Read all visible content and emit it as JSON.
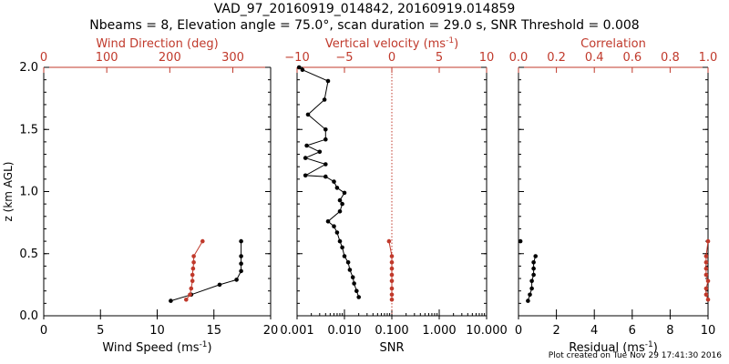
{
  "title_line1": "VAD_97_20160919_014842, 20160919.014859",
  "title_line2": "Nbeams = 8, Elevation angle = 75.0°, scan duration = 29.0 s, SNR Threshold = 0.008",
  "footer": "Plot created on Tue Nov 29 17:41:30 2016",
  "colors": {
    "axis": "#000000",
    "accent": "#c0392b"
  },
  "chart_data": [
    {
      "type": "line",
      "ylabel": "z (km AGL)",
      "ylim": [
        0,
        2.0
      ],
      "yticks": [
        "0.0",
        "0.5",
        "1.0",
        "1.5",
        "2.0"
      ],
      "xlabel_bottom": "Wind Speed (ms",
      "xlabel_bottom_sup": "-1",
      "xlabel_bottom_end": ")",
      "xlim_bottom": [
        0,
        20
      ],
      "xticks_bottom": [
        "0",
        "5",
        "10",
        "15",
        "20"
      ],
      "xlabel_top": "Wind Direction (deg)",
      "xlim_top": [
        0,
        360
      ],
      "xticks_top": [
        "0",
        "100",
        "200",
        "300"
      ],
      "series": [
        {
          "axis": "bottom",
          "color": "#000000",
          "x": [
            11.2,
            13.0,
            15.5,
            17.0,
            17.4,
            17.4,
            17.4,
            17.4
          ],
          "y": [
            0.12,
            0.17,
            0.25,
            0.29,
            0.36,
            0.42,
            0.48,
            0.6
          ]
        },
        {
          "axis": "top",
          "color": "#c0392b",
          "x": [
            226,
            232,
            234,
            236,
            236,
            237,
            238,
            238,
            252
          ],
          "y": [
            0.13,
            0.17,
            0.22,
            0.28,
            0.33,
            0.38,
            0.43,
            0.48,
            0.6
          ]
        }
      ]
    },
    {
      "type": "line",
      "xlabel_bottom": "SNR",
      "xscale_bottom": "log",
      "xlim_bottom": [
        0.001,
        10
      ],
      "xticks_bottom": [
        "0.001",
        "0.010",
        "0.100",
        "1.000",
        "10.000"
      ],
      "xlabel_top": "Vertical velocity (ms",
      "xlabel_top_sup": "-1",
      "xlabel_top_end": ")",
      "xlim_top": [
        -10,
        10
      ],
      "xticks_top": [
        "−10",
        "−5",
        "0",
        "5",
        "10"
      ],
      "reference_line_top_x": 0,
      "series": [
        {
          "axis": "bottom",
          "color": "#000000",
          "x": [
            0.02,
            0.018,
            0.016,
            0.015,
            0.013,
            0.012,
            0.01,
            0.009,
            0.008,
            0.007,
            0.006,
            0.0045,
            0.008,
            0.009,
            0.008,
            0.01,
            0.007,
            0.006,
            0.004,
            0.0015,
            0.004,
            0.0015,
            0.003,
            0.0016,
            0.004,
            0.004,
            0.0017,
            0.0038,
            0.0045,
            0.0013,
            0.0011
          ],
          "y": [
            0.15,
            0.2,
            0.26,
            0.31,
            0.37,
            0.43,
            0.48,
            0.55,
            0.6,
            0.67,
            0.72,
            0.76,
            0.84,
            0.9,
            0.93,
            0.99,
            1.03,
            1.08,
            1.12,
            1.13,
            1.22,
            1.27,
            1.32,
            1.37,
            1.42,
            1.5,
            1.62,
            1.74,
            1.89,
            1.98,
            2.0
          ]
        },
        {
          "axis": "top",
          "color": "#c0392b",
          "x": [
            0,
            0,
            0,
            0,
            0,
            0,
            0,
            0,
            -0.3
          ],
          "y": [
            0.13,
            0.17,
            0.22,
            0.28,
            0.33,
            0.38,
            0.43,
            0.48,
            0.6
          ]
        }
      ]
    },
    {
      "type": "line",
      "xlabel_bottom": "Residual (ms",
      "xlabel_bottom_sup": "-1",
      "xlabel_bottom_end": ")",
      "xlim_bottom": [
        0,
        10
      ],
      "xticks_bottom": [
        "0",
        "2",
        "4",
        "6",
        "8",
        "10"
      ],
      "xlabel_top": "Correlation",
      "xlim_top": [
        0,
        1.0
      ],
      "xticks_top": [
        "0.0",
        "0.2",
        "0.4",
        "0.6",
        "0.8",
        "1.0"
      ],
      "series": [
        {
          "axis": "bottom",
          "color": "#000000",
          "x": [
            0.5,
            0.6,
            0.7,
            0.7,
            0.8,
            0.8,
            0.8,
            0.9
          ],
          "y": [
            0.12,
            0.17,
            0.22,
            0.28,
            0.33,
            0.38,
            0.43,
            0.48
          ]
        },
        {
          "axis": "bottom",
          "color": "#000000",
          "x": [
            0.1
          ],
          "y": [
            0.6
          ]
        },
        {
          "axis": "top",
          "color": "#c0392b",
          "x": [
            1.0,
            0.99,
            0.99,
            1.0,
            0.99,
            0.99,
            0.99,
            0.99,
            1.0
          ],
          "y": [
            0.13,
            0.17,
            0.22,
            0.28,
            0.33,
            0.38,
            0.43,
            0.48,
            0.6
          ]
        }
      ]
    }
  ]
}
